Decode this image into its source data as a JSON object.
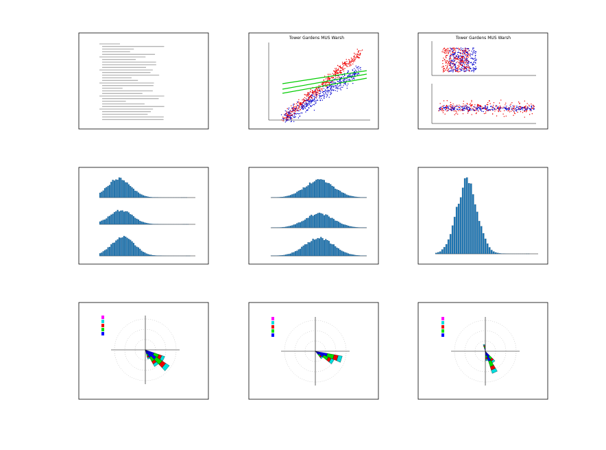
{
  "panels": [
    {
      "title": "Tower Gardens MUS Warsh"
    },
    {
      "title": "Tower Gardens MUS Warsh"
    }
  ]
}
